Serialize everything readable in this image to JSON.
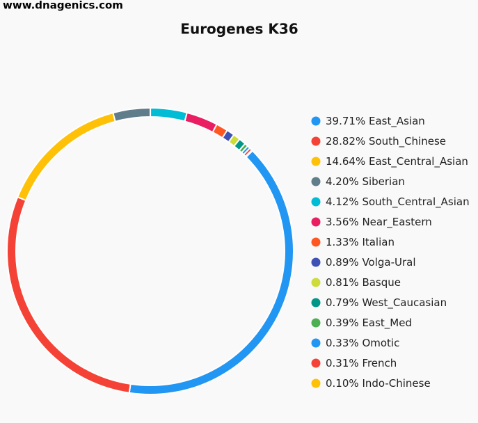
{
  "watermark": "www.dnagenics.com",
  "chart_data": {
    "type": "donut",
    "title": "Eurogenes K36",
    "start_angle": 45.5,
    "categories": [
      "East_Asian",
      "South_Chinese",
      "East_Central_Asian",
      "Siberian",
      "South_Central_Asian",
      "Near_Eastern",
      "Italian",
      "Volga-Ural",
      "Basque",
      "West_Caucasian",
      "East_Med",
      "Omotic",
      "French",
      "Indo-Chinese"
    ],
    "values": [
      39.71,
      28.82,
      14.64,
      4.2,
      4.12,
      3.56,
      1.33,
      0.89,
      0.81,
      0.79,
      0.39,
      0.33,
      0.31,
      0.1
    ],
    "value_labels": [
      "39.71%",
      "28.82%",
      "14.64%",
      "4.20%",
      "4.12%",
      "3.56%",
      "1.33%",
      "0.89%",
      "0.81%",
      "0.79%",
      "0.39%",
      "0.33%",
      "0.31%",
      "0.10%"
    ],
    "colors": [
      "#2196f3",
      "#f44336",
      "#ffc107",
      "#607d8b",
      "#00bcd4",
      "#e91e63",
      "#ff5722",
      "#3f51b5",
      "#cddc39",
      "#009688",
      "#4caf50",
      "#2196f3",
      "#f44336",
      "#ffc107"
    ],
    "legend": "right"
  }
}
